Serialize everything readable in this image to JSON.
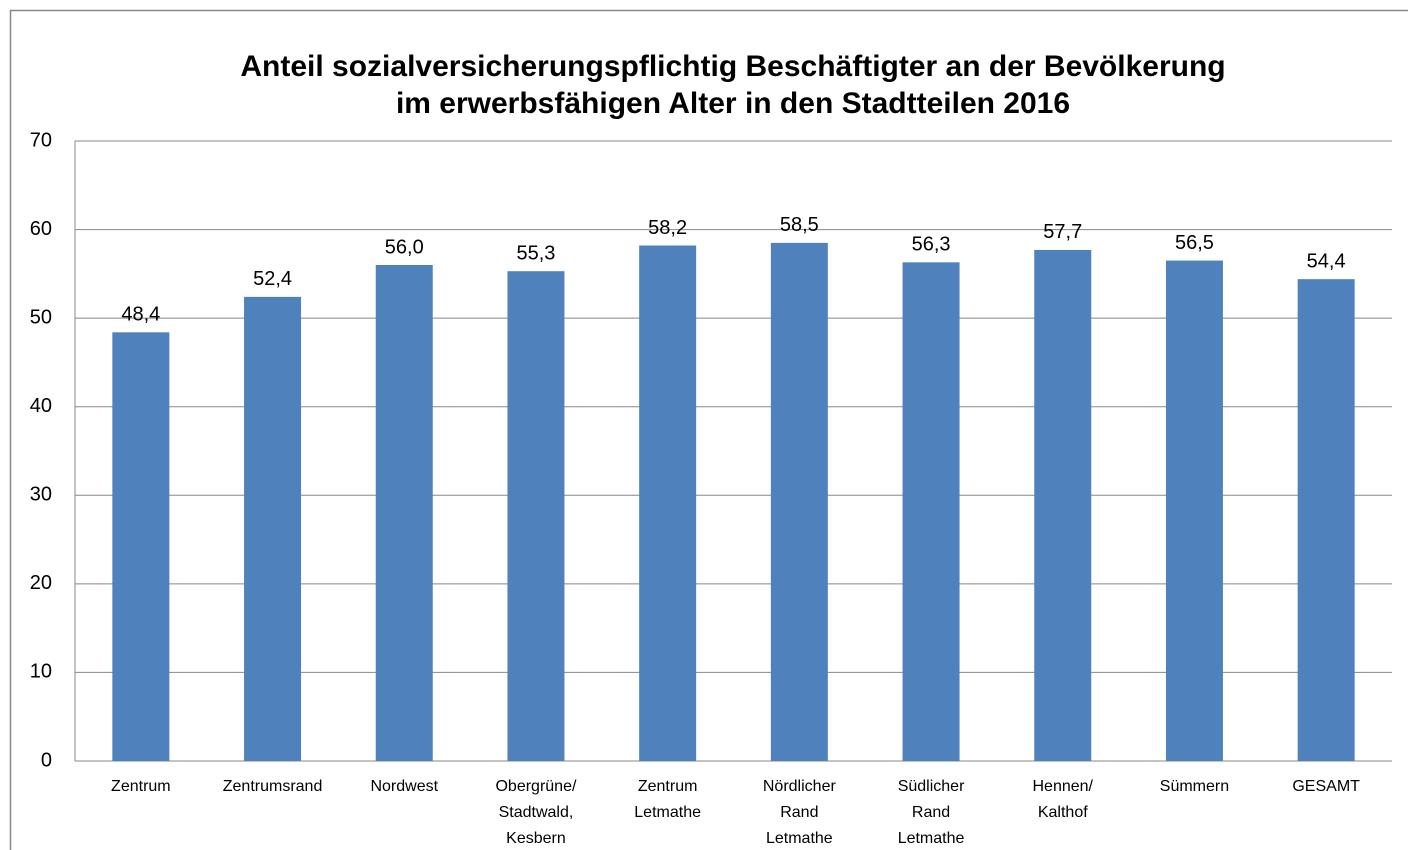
{
  "chart_data": {
    "type": "bar",
    "title": "Anteil sozialversicherungspflichtig Beschäftigter an der Bevölkerung\nim erwerbsfähigen Alter in den Stadtteilen 2016",
    "categories": [
      "Zentrum",
      "Zentrumsrand",
      "Nordwest",
      "Obergrüne/\nStadtwald,\nKesbern",
      "Zentrum\nLetmathe",
      "Nördlicher\nRand\nLetmathe",
      "Südlicher\nRand\nLetmathe",
      "Hennen/\nKalthof",
      "Sümmern",
      "GESAMT"
    ],
    "values": [
      48.4,
      52.4,
      56.0,
      55.3,
      58.2,
      58.5,
      56.3,
      57.7,
      56.5,
      54.4
    ],
    "value_labels": [
      "48,4",
      "52,4",
      "56,0",
      "55,3",
      "58,2",
      "58,5",
      "56,3",
      "57,7",
      "56,5",
      "54,4"
    ],
    "color": "#4f81bd",
    "ylim": [
      0,
      70
    ],
    "yticks": [
      0,
      10,
      20,
      30,
      40,
      50,
      60,
      70
    ],
    "grid": true
  }
}
